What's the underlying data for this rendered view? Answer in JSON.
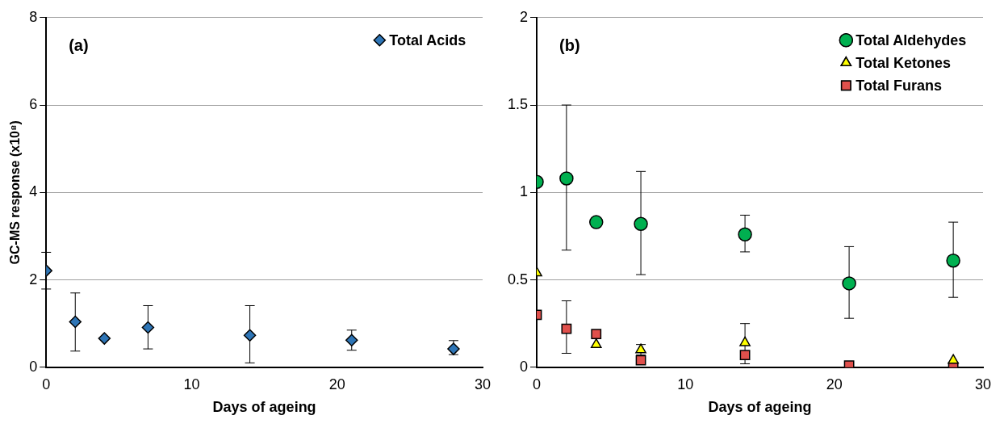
{
  "chart_data": [
    {
      "type": "scatter",
      "xlabel": "Days of ageing",
      "ylabel": "GC-MS response (x10⁸)",
      "annotations": [
        "(a)"
      ],
      "xlim": [
        0,
        30
      ],
      "xticks": [
        0,
        10,
        20,
        30
      ],
      "ylim": [
        0,
        8
      ],
      "yticks": [
        0,
        2,
        4,
        6,
        8
      ],
      "grid": "y",
      "legend": "top right",
      "series": [
        {
          "name": "Total Acids",
          "color": "#2e75b6",
          "marker": "diamond",
          "x": [
            0,
            2,
            4,
            7,
            14,
            21,
            28
          ],
          "values": [
            2.21,
            1.04,
            0.66,
            0.91,
            0.73,
            0.62,
            0.42
          ],
          "errors": [
            [
              1.79,
              2.63
            ],
            [
              0.37,
              1.7
            ],
            null,
            [
              0.42,
              1.41
            ],
            [
              0.1,
              1.41
            ],
            [
              0.39,
              0.85
            ],
            [
              0.29,
              0.61
            ]
          ]
        }
      ]
    },
    {
      "type": "scatter",
      "xlabel": "Days of ageing",
      "annotations": [
        "(b)"
      ],
      "xlim": [
        0,
        30
      ],
      "xticks": [
        0,
        10,
        20,
        30
      ],
      "ylim": [
        0,
        2
      ],
      "yticks": [
        0,
        0.5,
        1,
        1.5,
        2
      ],
      "grid": "y",
      "legend": "top right",
      "series": [
        {
          "name": "Total Aldehydes",
          "color": "#00b050",
          "marker": "circle",
          "x": [
            0,
            2,
            4,
            7,
            14,
            21,
            28
          ],
          "values": [
            1.06,
            1.08,
            0.83,
            0.82,
            0.76,
            0.48,
            0.61
          ],
          "errors": [
            null,
            [
              0.67,
              1.5
            ],
            null,
            [
              0.53,
              1.12
            ],
            [
              0.66,
              0.87
            ],
            [
              0.28,
              0.69
            ],
            [
              0.4,
              0.83
            ]
          ]
        },
        {
          "name": "Total Ketones",
          "color": "#ffff00",
          "marker": "triangle",
          "x": [
            0,
            2,
            4,
            7,
            14,
            21,
            28
          ],
          "values": [
            0.54,
            null,
            0.13,
            0.1,
            0.14,
            null,
            0.04
          ],
          "errors": [
            null,
            null,
            null,
            0.03,
            [
              0.02,
              0.25
            ],
            null,
            null
          ]
        },
        {
          "name": "Total Furans",
          "color": "#e0504c",
          "marker": "square",
          "x": [
            0,
            2,
            4,
            7,
            14,
            21,
            28
          ],
          "values": [
            0.3,
            0.22,
            0.19,
            0.04,
            0.07,
            0.01,
            0.0
          ],
          "errors": [
            null,
            [
              0.08,
              0.38
            ],
            null,
            null,
            null,
            null,
            null
          ]
        }
      ]
    }
  ]
}
